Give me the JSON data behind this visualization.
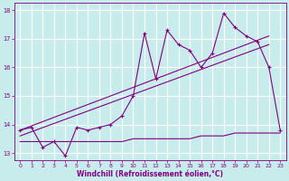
{
  "xlabel": "Windchill (Refroidissement éolien,°C)",
  "background_color": "#c8ecec",
  "grid_color": "#ffffff",
  "line_color": "#800080",
  "x_main": [
    0,
    1,
    2,
    3,
    4,
    5,
    6,
    7,
    8,
    9,
    10,
    11,
    12,
    13,
    14,
    15,
    16,
    17,
    18,
    19,
    20,
    21,
    22,
    23
  ],
  "y_main": [
    13.8,
    13.9,
    13.2,
    13.4,
    12.9,
    13.9,
    13.8,
    13.9,
    14.0,
    14.3,
    15.0,
    17.2,
    15.6,
    17.3,
    16.8,
    16.6,
    16.0,
    16.5,
    17.9,
    17.4,
    17.1,
    16.9,
    16.0,
    13.8
  ],
  "y_flat": [
    13.4,
    13.4,
    13.4,
    13.4,
    13.4,
    13.4,
    13.4,
    13.4,
    13.4,
    13.4,
    13.5,
    13.5,
    13.5,
    13.5,
    13.5,
    13.5,
    13.6,
    13.6,
    13.6,
    13.7,
    13.7,
    13.7,
    13.7,
    13.7
  ],
  "trend1_x": [
    0,
    22
  ],
  "trend1_y": [
    13.8,
    17.1
  ],
  "trend2_x": [
    0,
    22
  ],
  "trend2_y": [
    13.6,
    16.8
  ],
  "xlim": [
    -0.5,
    23.5
  ],
  "ylim": [
    12.75,
    18.25
  ],
  "yticks": [
    13,
    14,
    15,
    16,
    17,
    18
  ],
  "xticks": [
    0,
    1,
    2,
    3,
    4,
    5,
    6,
    7,
    8,
    9,
    10,
    11,
    12,
    13,
    14,
    15,
    16,
    17,
    18,
    19,
    20,
    21,
    22,
    23
  ],
  "tick_fontsize": 4.5,
  "xlabel_fontsize": 5.5
}
